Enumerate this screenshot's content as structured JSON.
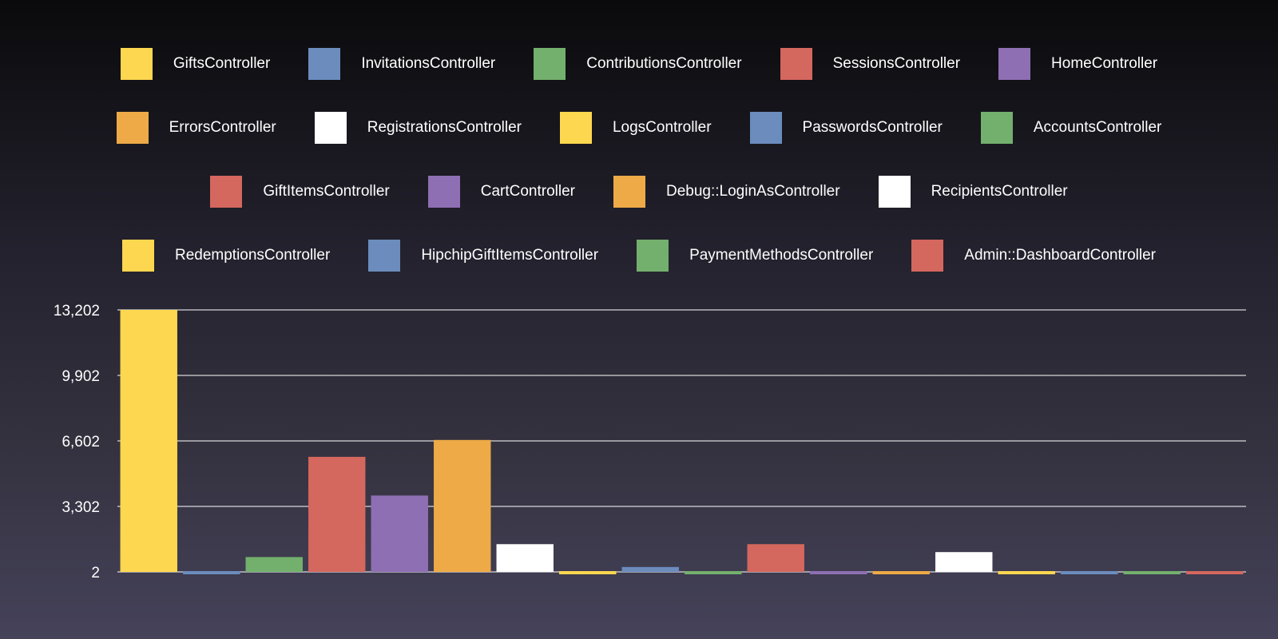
{
  "chart_data": {
    "type": "bar",
    "title": "",
    "xlabel": "",
    "ylabel": "",
    "ylim": [
      2,
      13202
    ],
    "y_ticks": [
      2,
      3302,
      6602,
      9902,
      13202
    ],
    "y_tick_labels": [
      "2",
      "3,302",
      "6,602",
      "9,902",
      "13,202"
    ],
    "grid": true,
    "legend_placement": "top",
    "categories": [
      "GiftsController",
      "InvitationsController",
      "ContributionsController",
      "SessionsController",
      "HomeController",
      "ErrorsController",
      "RegistrationsController",
      "LogsController",
      "PasswordsController",
      "AccountsController",
      "GiftItemsController",
      "CartController",
      "Debug::LoginAsController",
      "RecipientsController",
      "RedemptionsController",
      "HipchipGiftItemsController",
      "PaymentMethodsController",
      "Admin::DashboardController"
    ],
    "values": [
      13202,
      120,
      750,
      5800,
      3850,
      6650,
      1400,
      2,
      250,
      25,
      1400,
      10,
      2,
      1000,
      2,
      10,
      20,
      2
    ],
    "colors": [
      "#fdd74f",
      "#6b8cbd",
      "#73b06d",
      "#d4675e",
      "#8e6fb3",
      "#eeaa47",
      "#ffffff",
      "#fdd74f",
      "#6b8cbd",
      "#73b06d",
      "#d4675e",
      "#8e6fb3",
      "#eeaa47",
      "#ffffff",
      "#fdd74f",
      "#6b8cbd",
      "#73b06d",
      "#d4675e"
    ],
    "legend_rows": [
      [
        0,
        1,
        2,
        3,
        4
      ],
      [
        5,
        6,
        7,
        8,
        9
      ],
      [
        10,
        11,
        12,
        13
      ],
      [
        14,
        15,
        16,
        17
      ]
    ]
  }
}
